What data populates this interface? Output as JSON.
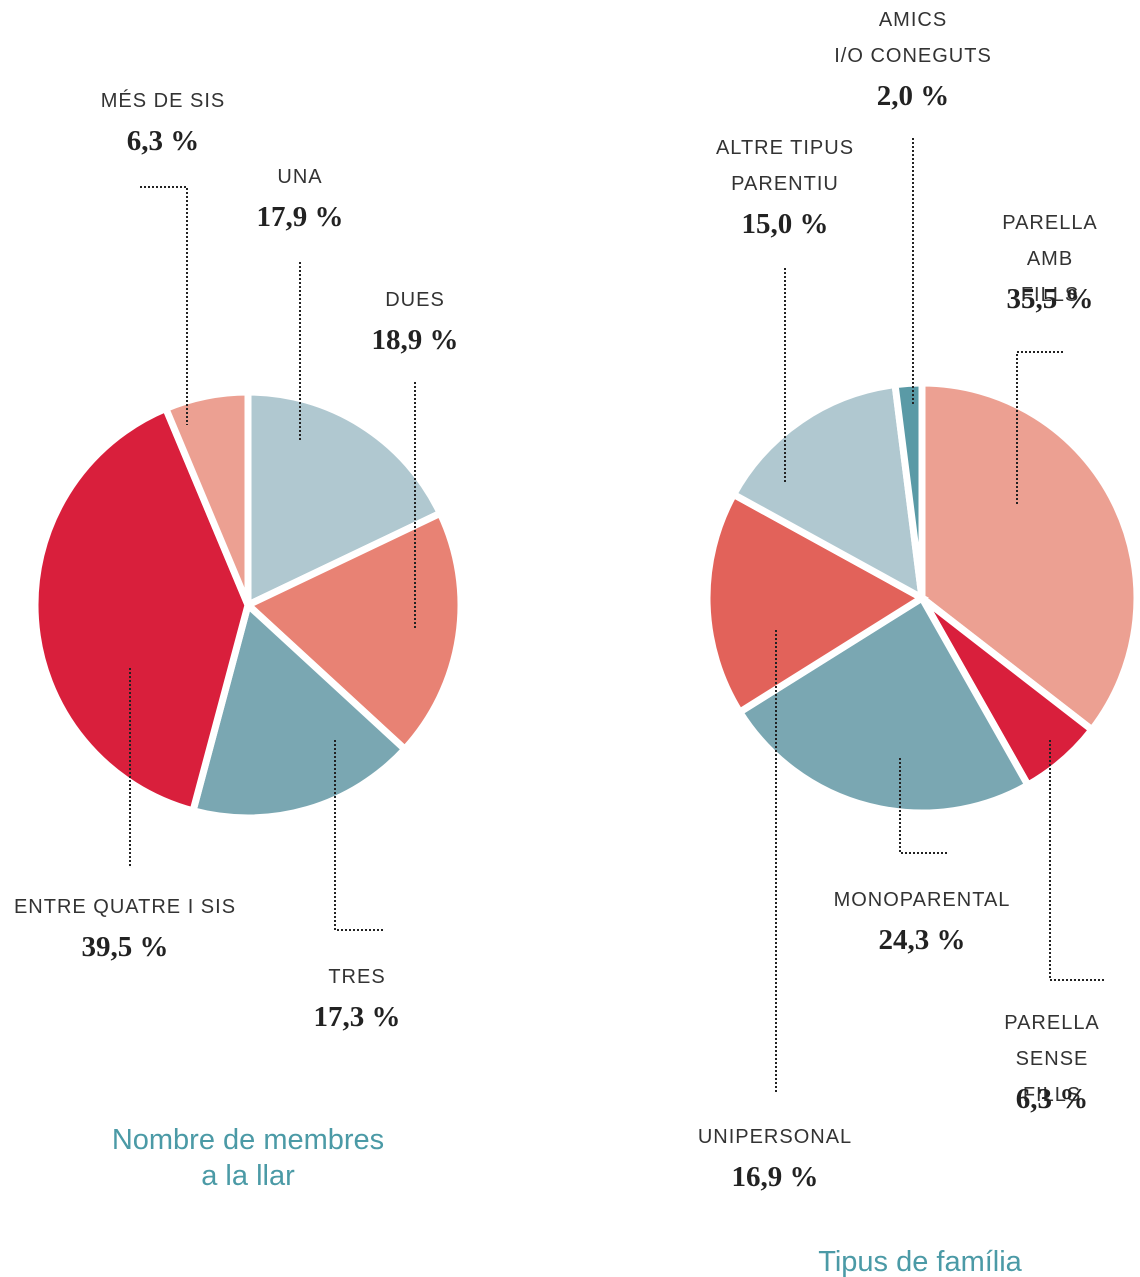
{
  "chart_data": [
    {
      "type": "pie",
      "title": "Nombre de membres\na la llar",
      "categories": [
        "UNA",
        "DUES",
        "TRES",
        "ENTRE QUATRE I SIS",
        "MÉS DE SIS"
      ],
      "values": [
        17.9,
        18.9,
        17.3,
        39.5,
        6.3
      ],
      "value_labels": [
        "17,9 %",
        "18,9 %",
        "17,3 %",
        "39,5 %",
        "6,3 %"
      ],
      "colors": [
        "#b0c8d0",
        "#e88274",
        "#7aa7b2",
        "#d91f3c",
        "#eca092"
      ]
    },
    {
      "type": "pie",
      "title": "Tipus de família",
      "categories": [
        "PARELLA\nAMB FILLS",
        "PARELLA\nSENSE FILLS",
        "MONOPARENTAL",
        "UNIPERSONAL",
        "ALTRE TIPUS\nPARENTIU",
        "AMICS\nI/O CONEGUTS"
      ],
      "values": [
        35.5,
        6.3,
        24.3,
        16.9,
        15.0,
        2.0
      ],
      "value_labels": [
        "35,5 %",
        "6,3 %",
        "24,3 %",
        "16,9 %",
        "15,0 %",
        "2,0 %"
      ],
      "colors": [
        "#eca092",
        "#d91f3c",
        "#7aa7b2",
        "#e2625a",
        "#b0c8d0",
        "#5a9aa6"
      ]
    }
  ]
}
